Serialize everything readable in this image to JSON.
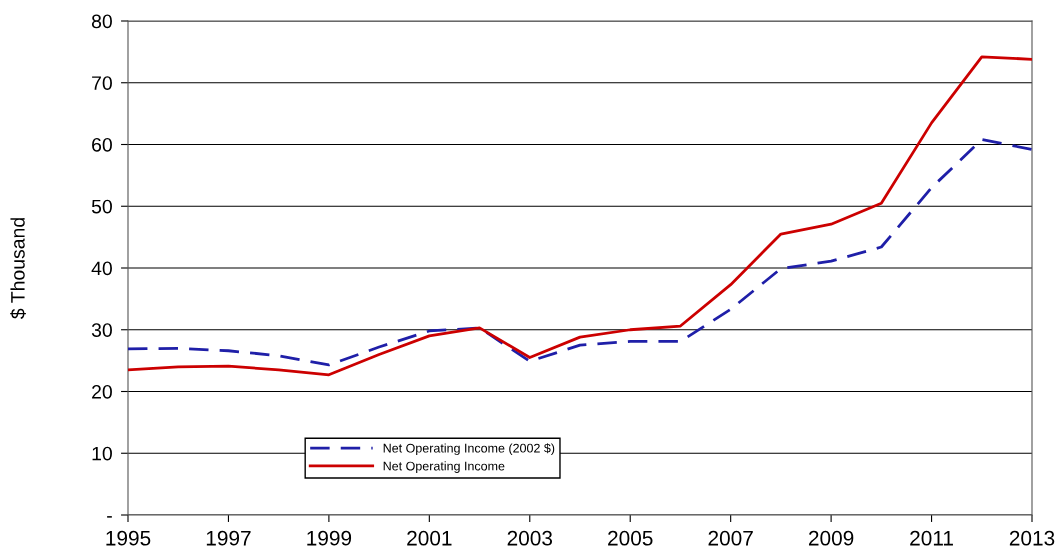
{
  "chart_data": {
    "type": "line",
    "ylabel": "$ Thousand",
    "x": [
      1995,
      1996,
      1997,
      1998,
      1999,
      2000,
      2001,
      2002,
      2003,
      2004,
      2005,
      2006,
      2007,
      2008,
      2009,
      2010,
      2011,
      2012,
      2013
    ],
    "series": [
      {
        "name": "Net Operating Income (2002 $)",
        "color": "#1f1fa8",
        "line_style": "dashed",
        "values": [
          26.9,
          27.0,
          26.6,
          25.8,
          24.3,
          27.2,
          29.8,
          30.3,
          24.9,
          27.5,
          28.1,
          28.1,
          33.3,
          39.9,
          41.1,
          43.4,
          53.0,
          60.8,
          59.2
        ]
      },
      {
        "name": "Net Operating Income",
        "color": "#cc0000",
        "line_style": "solid",
        "values": [
          23.5,
          24.0,
          24.1,
          23.5,
          22.7,
          26.0,
          29.0,
          30.3,
          25.5,
          28.8,
          30.0,
          30.6,
          37.3,
          45.5,
          47.1,
          50.5,
          63.5,
          74.2,
          73.8
        ]
      }
    ],
    "xlim": [
      1995,
      2013
    ],
    "xticks": [
      1995,
      1997,
      1999,
      2001,
      2003,
      2005,
      2007,
      2009,
      2011,
      2013
    ],
    "ylim": [
      0,
      80
    ],
    "yticks": [
      {
        "value": 0,
        "label": "-"
      },
      10,
      20,
      30,
      40,
      50,
      60,
      70,
      80
    ],
    "grid": "y",
    "legend": "bottom",
    "marker": "none"
  }
}
